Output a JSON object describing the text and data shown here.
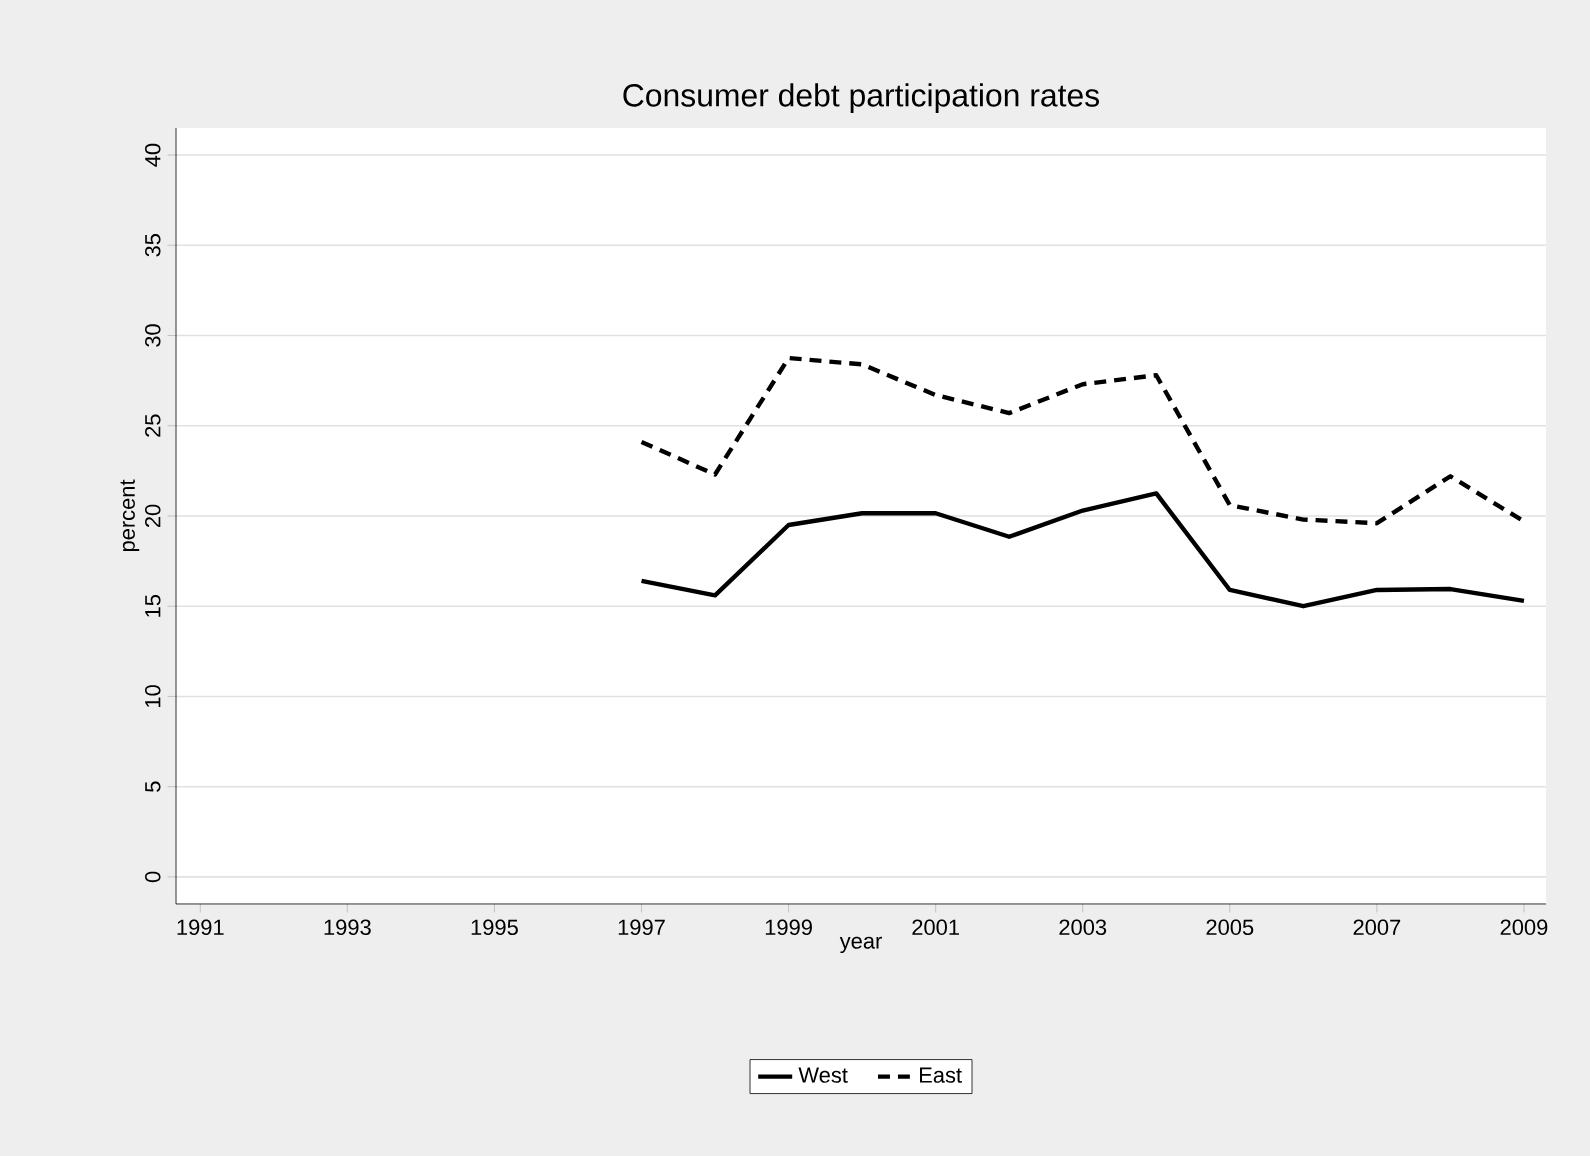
{
  "chart_data": {
    "type": "line",
    "title": "Consumer debt participation rates",
    "xlabel": "year",
    "ylabel": "percent",
    "x": [
      1997,
      1998,
      1999,
      2000,
      2001,
      2002,
      2003,
      2004,
      2005,
      2006,
      2007,
      2008,
      2009
    ],
    "series": [
      {
        "name": "West",
        "color": "#000000",
        "line_style": "solid",
        "values": [
          16.4,
          15.6,
          19.5,
          20.15,
          20.15,
          18.85,
          20.3,
          21.25,
          15.9,
          15.0,
          15.9,
          15.95,
          15.3
        ]
      },
      {
        "name": "East",
        "color": "#000000",
        "line_style": "dashed",
        "values": [
          24.1,
          22.3,
          28.75,
          28.4,
          26.7,
          25.7,
          27.3,
          27.8,
          20.6,
          19.8,
          19.6,
          22.2,
          19.7
        ]
      }
    ],
    "xlim": [
      1990.67,
      2009.3
    ],
    "ylim": [
      -1.5,
      41.5
    ],
    "xticks": [
      1991,
      1993,
      1995,
      1997,
      1999,
      2001,
      2003,
      2005,
      2007,
      2009
    ],
    "yticks": [
      0,
      5,
      10,
      15,
      20,
      25,
      30,
      35,
      40
    ],
    "grid": "y",
    "legend": "bottom",
    "marker": "none"
  }
}
